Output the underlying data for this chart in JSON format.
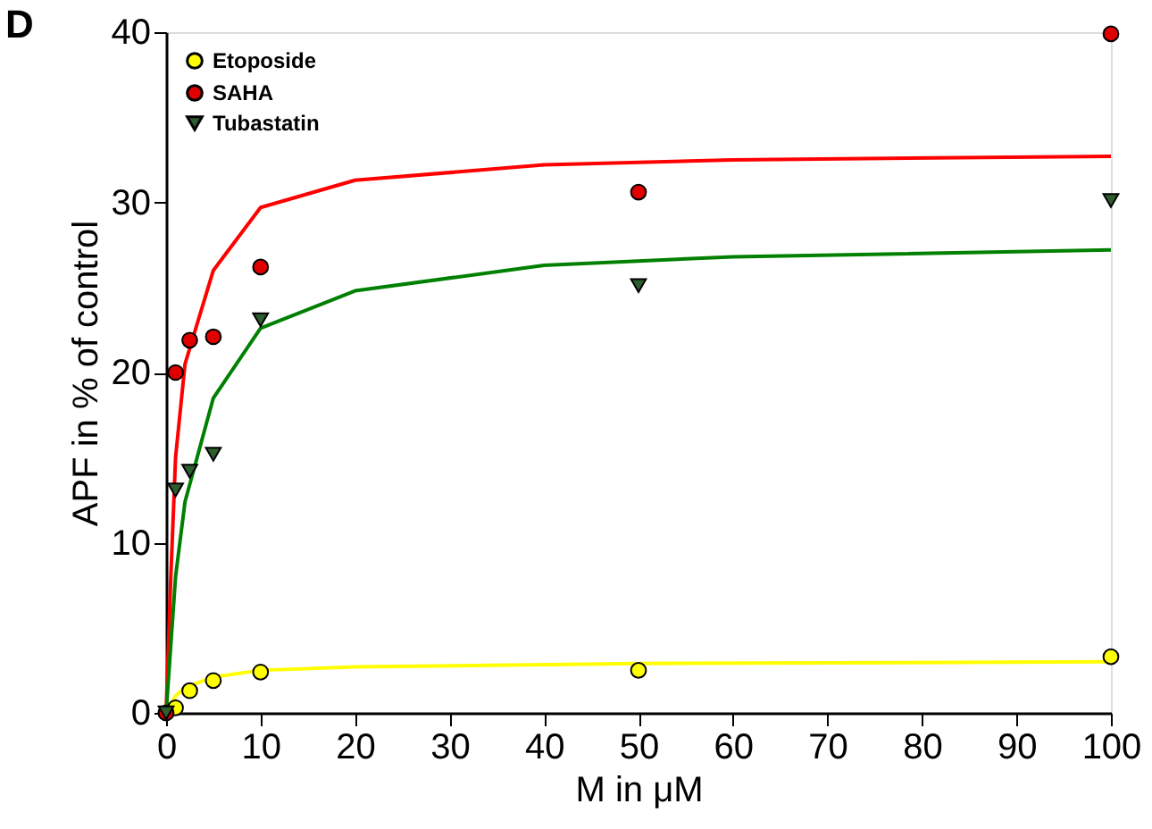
{
  "chart_data": {
    "type": "scatter",
    "xlabel": "M in μM",
    "ylabel": "APF in % of control",
    "xlim": [
      0,
      100
    ],
    "ylim": [
      0,
      40
    ],
    "xticks": [
      0,
      10,
      20,
      30,
      40,
      50,
      60,
      70,
      80,
      90,
      100
    ],
    "yticks": [
      0,
      10,
      20,
      30,
      40
    ],
    "grid": false,
    "legend": "top left",
    "annotations": [
      "D"
    ],
    "series": [
      {
        "name": "Etoposide",
        "marker": "circle",
        "color": "#ffff00",
        "x": [
          0,
          1,
          2.5,
          5,
          10,
          50,
          100
        ],
        "values": [
          0,
          0.3,
          1.3,
          1.9,
          2.4,
          2.5,
          3.3
        ]
      },
      {
        "name": "SAHA",
        "marker": "circle",
        "color": "#e00000",
        "x": [
          0,
          1,
          2.5,
          5,
          10,
          50,
          100
        ],
        "values": [
          0,
          20,
          21.9,
          22.1,
          26.2,
          30.6,
          39.9
        ]
      },
      {
        "name": "Tubastatin",
        "marker": "triangle",
        "color": "#2e5e2e",
        "x": [
          0,
          1,
          2.5,
          5,
          10,
          50,
          100
        ],
        "values": [
          0,
          13.1,
          14.2,
          15.2,
          23.1,
          25.1,
          30.1
        ]
      },
      {
        "type": "line",
        "line_style": "solid",
        "color": "#ffff00",
        "x": [
          0,
          1,
          2,
          5,
          10,
          20,
          50,
          100
        ],
        "values": [
          0,
          1.0,
          1.5,
          2.1,
          2.5,
          2.7,
          2.9,
          3.0
        ]
      },
      {
        "type": "line",
        "line_style": "solid",
        "color": "#ff0000",
        "x": [
          0,
          0.5,
          1,
          2,
          5,
          10,
          20,
          40,
          60,
          100
        ],
        "values": [
          0,
          8,
          15,
          20.5,
          26,
          29.7,
          31.3,
          32.2,
          32.5,
          32.7
        ]
      },
      {
        "type": "line",
        "line_style": "solid",
        "color": "#008000",
        "x": [
          0,
          1,
          2,
          5,
          10,
          20,
          40,
          60,
          100
        ],
        "values": [
          0,
          8,
          12.4,
          18.5,
          22.6,
          24.8,
          26.3,
          26.8,
          27.2
        ]
      }
    ]
  }
}
